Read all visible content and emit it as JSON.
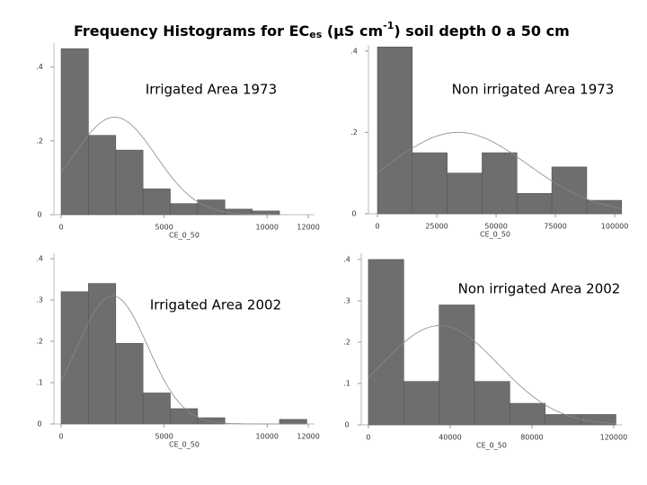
{
  "title": {
    "parts": [
      "Frequency Histograms for EC",
      "es",
      " (µS cm",
      "-1",
      ") soil depth 0 a 50 cm"
    ]
  },
  "chart_data": [
    {
      "type": "histogram",
      "title": "Irrigated Area 1973",
      "xlabel": "CE_0_50",
      "color": "#6e6e6e",
      "bins": [
        0,
        1325,
        2650,
        3975,
        5300,
        6625,
        7950,
        9275,
        10600
      ],
      "values": [
        0.45,
        0.215,
        0.175,
        0.07,
        0.03,
        0.04,
        0.015,
        0.01
      ],
      "normal_fit": {
        "mean": 2600,
        "sd": 2000
      },
      "xlim": [
        -350,
        12300
      ],
      "ylim": [
        0,
        0.465
      ],
      "xticks": [
        0,
        5000,
        10000,
        12000
      ],
      "yticks": [
        0,
        {
          "value": 0.2,
          "label": ".2"
        },
        {
          "value": 0.4,
          "label": ".4"
        }
      ]
    },
    {
      "type": "histogram",
      "title": "Non irrigated Area 1973",
      "xlabel": "CE_0_50",
      "color": "#6e6e6e",
      "bins": [
        0,
        14700,
        29400,
        44100,
        58800,
        73500,
        88200,
        102900
      ],
      "values": [
        0.41,
        0.15,
        0.1,
        0.15,
        0.05,
        0.115,
        0.033
      ],
      "normal_fit": {
        "mean": 34000,
        "sd": 29300
      },
      "xlim": [
        -3800,
        103000
      ],
      "ylim": [
        0,
        0.415
      ],
      "xticks": [
        0,
        25000,
        50000,
        75000,
        100000
      ],
      "yticks": [
        0,
        {
          "value": 0.2,
          "label": ".2"
        },
        {
          "value": 0.4,
          "label": ".4"
        }
      ]
    },
    {
      "type": "histogram",
      "title": "Irrigated Area 2002",
      "xlabel": "CE_0_50",
      "color": "#6e6e6e",
      "bins": [
        0,
        1325,
        2650,
        3975,
        5300,
        6625,
        7950,
        9275,
        10600,
        11925
      ],
      "values": [
        0.32,
        0.34,
        0.195,
        0.075,
        0.037,
        0.015,
        0,
        0,
        0.011
      ],
      "normal_fit": {
        "mean": 2500,
        "sd": 1705
      },
      "xlim": [
        -350,
        12300
      ],
      "ylim": [
        0,
        0.413
      ],
      "xticks": [
        0,
        5000,
        10000,
        12000
      ],
      "yticks": [
        0,
        {
          "value": 0.1,
          "label": ".1"
        },
        {
          "value": 0.2,
          "label": ".2"
        },
        {
          "value": 0.3,
          "label": ".3"
        },
        {
          "value": 0.4,
          "label": ".4"
        }
      ]
    },
    {
      "type": "histogram",
      "title": "Non irrigated Area 2002",
      "xlabel": "CE_0_50",
      "color": "#6e6e6e",
      "bins": [
        0,
        17300,
        34600,
        51900,
        69200,
        86500,
        103800,
        121100
      ],
      "values": [
        0.4,
        0.105,
        0.29,
        0.105,
        0.052,
        0.025,
        0.025
      ],
      "normal_fit": {
        "mean": 35000,
        "sd": 28750
      },
      "xlim": [
        -3500,
        124000
      ],
      "ylim": [
        0,
        0.415
      ],
      "xticks": [
        0,
        40000,
        80000,
        120000
      ],
      "yticks": [
        0,
        {
          "value": 0.1,
          "label": ".1"
        },
        {
          "value": 0.2,
          "label": ".2"
        },
        {
          "value": 0.3,
          "label": ".3"
        },
        {
          "value": 0.4,
          "label": ".4"
        }
      ]
    }
  ]
}
